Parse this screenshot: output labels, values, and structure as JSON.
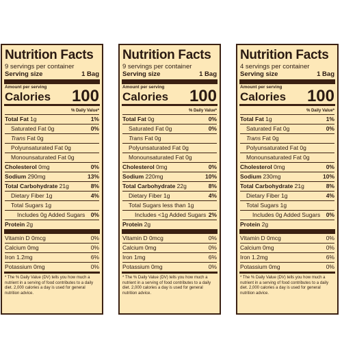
{
  "labels": [
    {
      "title": "Nutrition Facts",
      "servings": "9 servings per container",
      "serving_size_label": "Serving size",
      "serving_size_value": "1 Bag",
      "amount_per_serving": "Amount per serving",
      "calories_label": "Calories",
      "calories_value": "100",
      "dv_header": "% Daily Value*",
      "total_fat": {
        "bold": "Total Fat",
        "amt": " 1g",
        "pct": "1%"
      },
      "saturated_fat": {
        "label": "Saturated Fat 0g",
        "pct": "0%"
      },
      "trans_fat": {
        "italic": "Trans",
        "rest": " Fat 0g"
      },
      "polyunsaturated_fat": "Polyunsaturated Fat 0g",
      "monounsaturated_fat": "Monounsaturated Fat 0g",
      "cholesterol": {
        "bold": "Cholesterol",
        "amt": " 0mg",
        "pct": "0%"
      },
      "sodium": {
        "bold": "Sodium",
        "amt": " 290mg",
        "pct": "13%"
      },
      "total_carb": {
        "bold": "Total Carbohydrate",
        "amt": " 21g",
        "pct": "8%"
      },
      "dietary_fiber": {
        "label": "Dietary Fiber 1g",
        "pct": "4%"
      },
      "total_sugars": {
        "label": "Total Sugars 1g",
        "pct": ""
      },
      "added_sugars": {
        "label": "Includes 0g Added Sugars",
        "pct": "0%"
      },
      "protein": {
        "bold": "Protein",
        "amt": " 2g"
      },
      "vitamin_d": {
        "label": "Vitamin D 0mcg",
        "pct": "0%"
      },
      "calcium": {
        "label": "Calcium 0mg",
        "pct": "0%"
      },
      "iron": {
        "label": "Iron 1.2mg",
        "pct": "6%"
      },
      "potassium": {
        "label": "Potassium 0mg",
        "pct": "0%"
      },
      "footnote": "* The % Daily Value (DV) tells you how much a nutrient in a serving of food contributes to a daily diet. 2,000 calories a day is used for general nutrition advice."
    },
    {
      "title": "Nutrition Facts",
      "servings": "9 servings per container",
      "serving_size_label": "Serving size",
      "serving_size_value": "1 Bag",
      "amount_per_serving": "Amount per serving",
      "calories_label": "Calories",
      "calories_value": "100",
      "dv_header": "% Daily Value*",
      "total_fat": {
        "bold": "Total Fat",
        "amt": " 0g",
        "pct": "0%"
      },
      "saturated_fat": {
        "label": "Saturated Fat 0g",
        "pct": "0%"
      },
      "trans_fat": {
        "italic": "Trans",
        "rest": " Fat 0g"
      },
      "polyunsaturated_fat": "Polyunsaturated Fat 0g",
      "monounsaturated_fat": "Monounsaturated Fat 0g",
      "cholesterol": {
        "bold": "Cholesterol",
        "amt": " 0mg",
        "pct": "0%"
      },
      "sodium": {
        "bold": "Sodium",
        "amt": " 220mg",
        "pct": "10%"
      },
      "total_carb": {
        "bold": "Total Carbohydrate",
        "amt": " 22g",
        "pct": "8%"
      },
      "dietary_fiber": {
        "label": "Dietary Fiber 1g",
        "pct": "4%"
      },
      "total_sugars": {
        "label": "Total Sugars less than 1g",
        "pct": ""
      },
      "added_sugars": {
        "label": "Includes <1g Added Sugars",
        "pct": "2%"
      },
      "protein": {
        "bold": "Protein",
        "amt": " 2g"
      },
      "vitamin_d": {
        "label": "Vitamin D 0mcg",
        "pct": "0%"
      },
      "calcium": {
        "label": "Calcium 0mg",
        "pct": "0%"
      },
      "iron": {
        "label": "Iron 1mg",
        "pct": "6%"
      },
      "potassium": {
        "label": "Potassium 0mg",
        "pct": "0%"
      },
      "footnote": "* The % Daily Value (DV) tells you how much a nutrient in a serving of food contributes to a daily diet. 2,000 calories a day is used for general nutrition advice."
    },
    {
      "title": "Nutrition Facts",
      "servings": "4 servings per container",
      "serving_size_label": "Serving size",
      "serving_size_value": "1 Bag",
      "amount_per_serving": "Amount per serving",
      "calories_label": "Calories",
      "calories_value": "100",
      "dv_header": "% Daily Value*",
      "total_fat": {
        "bold": "Total Fat",
        "amt": " 1g",
        "pct": "1%"
      },
      "saturated_fat": {
        "label": "Saturated Fat 0g",
        "pct": "0%"
      },
      "trans_fat": {
        "italic": "Trans",
        "rest": " Fat 0g"
      },
      "polyunsaturated_fat": "Polyunsaturated Fat 0g",
      "monounsaturated_fat": "Monounsaturated Fat 0g",
      "cholesterol": {
        "bold": "Cholesterol",
        "amt": " 0mg",
        "pct": "0%"
      },
      "sodium": {
        "bold": "Sodium",
        "amt": " 230mg",
        "pct": "10%"
      },
      "total_carb": {
        "bold": "Total Carbohydrate",
        "amt": " 21g",
        "pct": "8%"
      },
      "dietary_fiber": {
        "label": "Dietary Fiber 1g",
        "pct": "4%"
      },
      "total_sugars": {
        "label": "Total Sugars 1g",
        "pct": ""
      },
      "added_sugars": {
        "label": "Includes 0g Added Sugars",
        "pct": "0%"
      },
      "protein": {
        "bold": "Protein",
        "amt": " 2g"
      },
      "vitamin_d": {
        "label": "Vitamin D 0mcg",
        "pct": "0%"
      },
      "calcium": {
        "label": "Calcium 0mg",
        "pct": "0%"
      },
      "iron": {
        "label": "Iron 1.2mg",
        "pct": "6%"
      },
      "potassium": {
        "label": "Potassium 0mg",
        "pct": "0%"
      },
      "footnote": "* The % Daily Value (DV) tells you how much a nutrient in a serving of food contributes to a daily diet. 2,000 calories a day is used for general nutrition advice."
    }
  ],
  "colors": {
    "panel_background": "#fde8b8",
    "rule_color": "#3a2012",
    "text_color": "#2a1a12"
  }
}
